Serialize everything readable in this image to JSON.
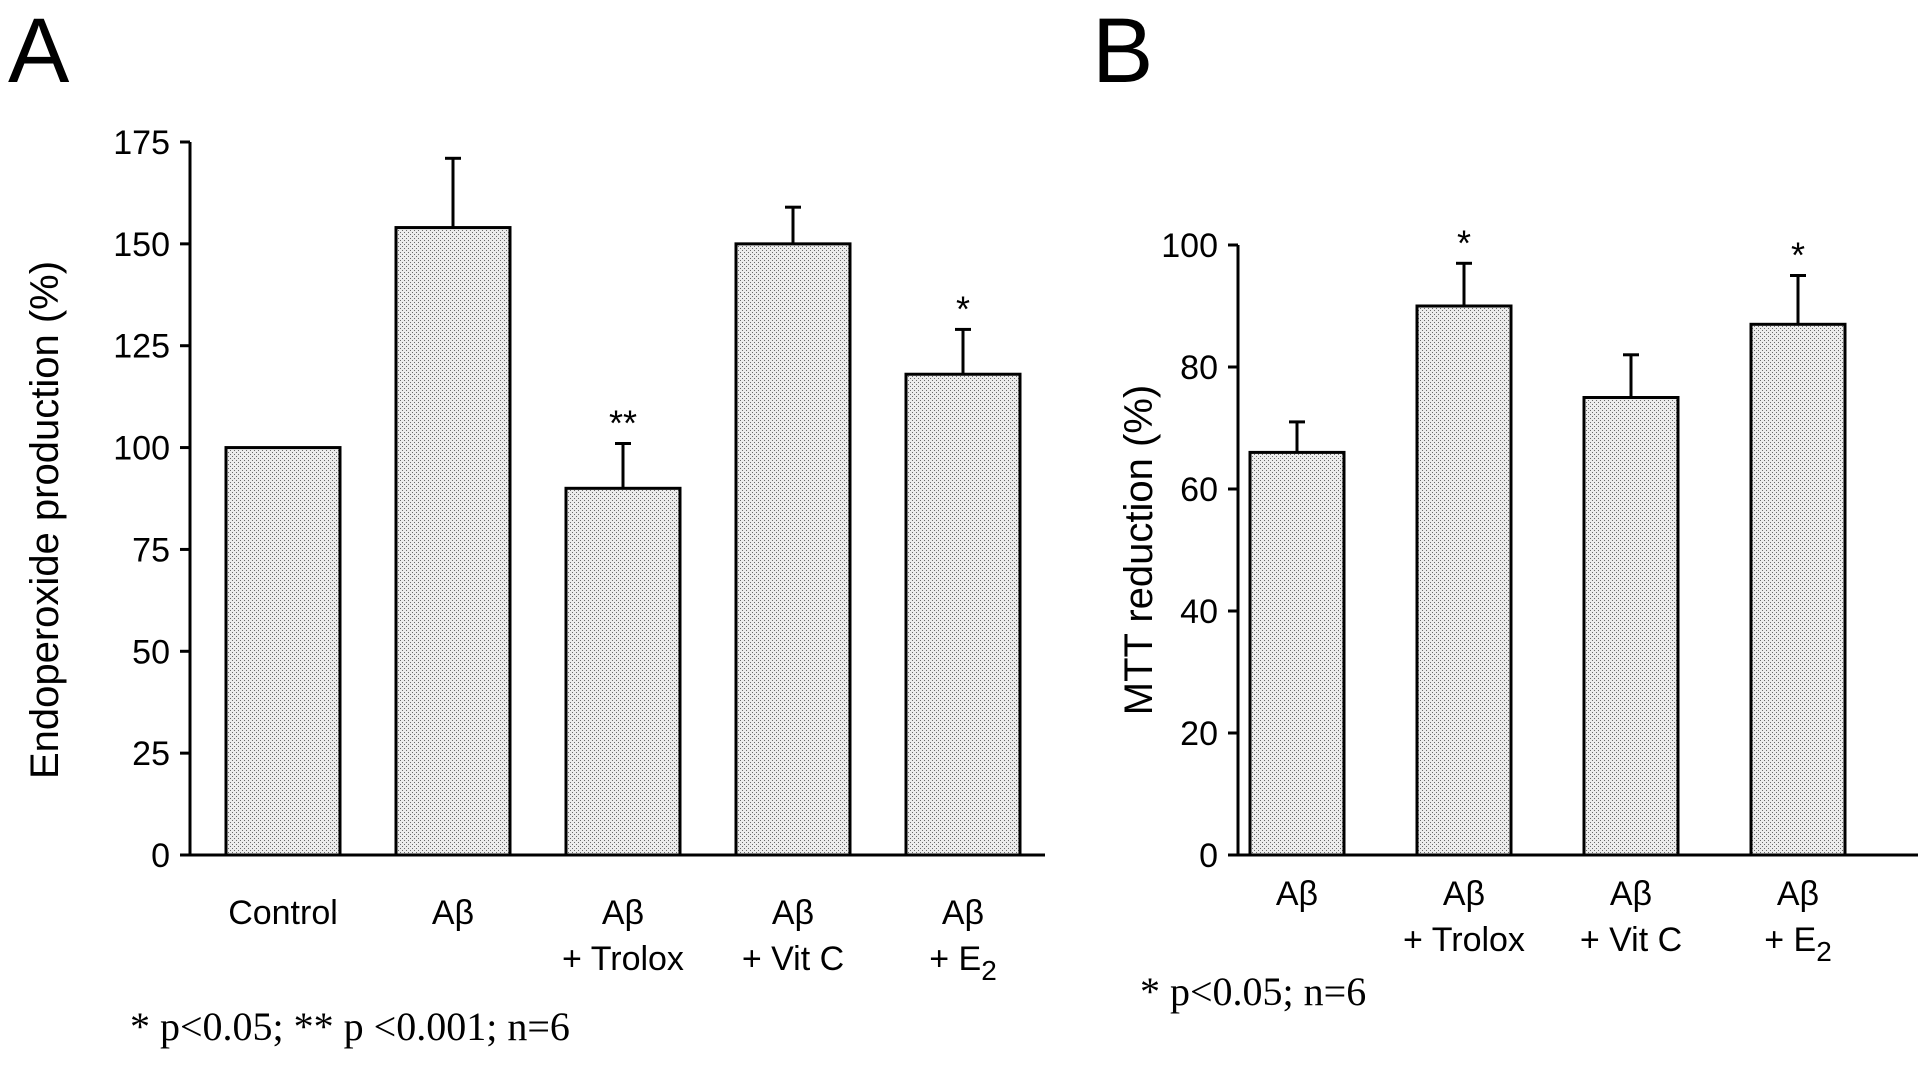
{
  "colors": {
    "bar_fill": "#d9d9d9",
    "ink": "#000000",
    "background": "#ffffff"
  },
  "chart_data": [
    {
      "type": "bar",
      "panel_label": "A",
      "ylabel": "Endoperoxide production (%)",
      "ylim": [
        0,
        175
      ],
      "yticks": [
        "0",
        "25",
        "50",
        "75",
        "100",
        "125",
        "150",
        "175"
      ],
      "categories": [
        {
          "line1": "Control",
          "line2": "",
          "sub": ""
        },
        {
          "line1": "Aβ",
          "line2": "",
          "sub": ""
        },
        {
          "line1": "Aβ",
          "line2": "+ Trolox",
          "sub": ""
        },
        {
          "line1": "Aβ",
          "line2": "+ Vit C",
          "sub": ""
        },
        {
          "line1": "Aβ",
          "line2": "+ E",
          "sub": "2"
        }
      ],
      "values": [
        100,
        154,
        90,
        150,
        118
      ],
      "errors": [
        0,
        17,
        11,
        9,
        11
      ],
      "significance": [
        "",
        "",
        "**",
        "",
        "*"
      ],
      "footnote": "* p<0.05; ** p <0.001; n=6",
      "grid": false
    },
    {
      "type": "bar",
      "panel_label": "B",
      "ylabel": "MTT reduction (%)",
      "ylim": [
        0,
        100
      ],
      "yticks": [
        "0",
        "20",
        "40",
        "60",
        "80",
        "100"
      ],
      "categories": [
        {
          "line1": "Aβ",
          "line2": "",
          "sub": ""
        },
        {
          "line1": "Aβ",
          "line2": "+ Trolox",
          "sub": ""
        },
        {
          "line1": "Aβ",
          "line2": "+ Vit C",
          "sub": ""
        },
        {
          "line1": "Aβ",
          "line2": "+ E",
          "sub": "2"
        }
      ],
      "values": [
        66,
        90,
        75,
        87
      ],
      "errors": [
        5,
        7,
        7,
        8
      ],
      "significance": [
        "",
        "*",
        "",
        "*"
      ],
      "footnote": "* p<0.05; n=6",
      "grid": false
    }
  ]
}
